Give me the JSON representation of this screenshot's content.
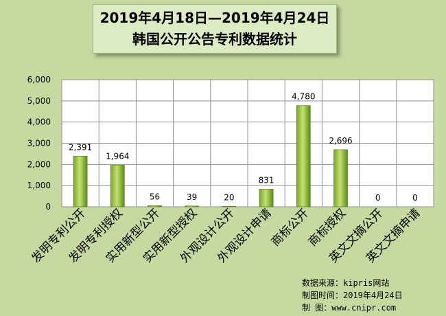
{
  "title": {
    "line1": "2019年4月18日—2019年4月24日",
    "line2": "韩国公开公告专利数据统计"
  },
  "credits": {
    "source": "数据来源：kipris网站",
    "date": "制图时间：2019年4月24日",
    "maker": "制    图：www.cnipr.com"
  },
  "colors": {
    "background": "#c5d9a0",
    "plot_area": "#ffffff",
    "bar_light": "#c3e170",
    "bar_dark": "#5b8a19",
    "gridline": "#8f8f8f"
  },
  "chart_data": {
    "type": "bar",
    "title": "2019年4月18日—2019年4月24日 韩国公开公告专利数据统计",
    "xlabel": "",
    "ylabel": "",
    "ylim": [
      0,
      6000
    ],
    "yticks": [
      "0",
      "1,000",
      "2,000",
      "3,000",
      "4,000",
      "5,000",
      "6,000"
    ],
    "ytick_values": [
      0,
      1000,
      2000,
      3000,
      4000,
      5000,
      6000
    ],
    "grid": true,
    "legend": "none",
    "categories": [
      "发明专利公开",
      "发明专利授权",
      "实用新型公开",
      "实用新型授权",
      "外观设计公开",
      "外观设计申请",
      "商标公开",
      "商标授权",
      "英文文摘公开",
      "英文文摘申请"
    ],
    "values": [
      2391,
      1964,
      56,
      39,
      20,
      831,
      4780,
      2696,
      0,
      0
    ],
    "value_labels": [
      "2,391",
      "1,964",
      "56",
      "39",
      "20",
      "831",
      "4,780",
      "2,696",
      "0",
      "0"
    ]
  }
}
